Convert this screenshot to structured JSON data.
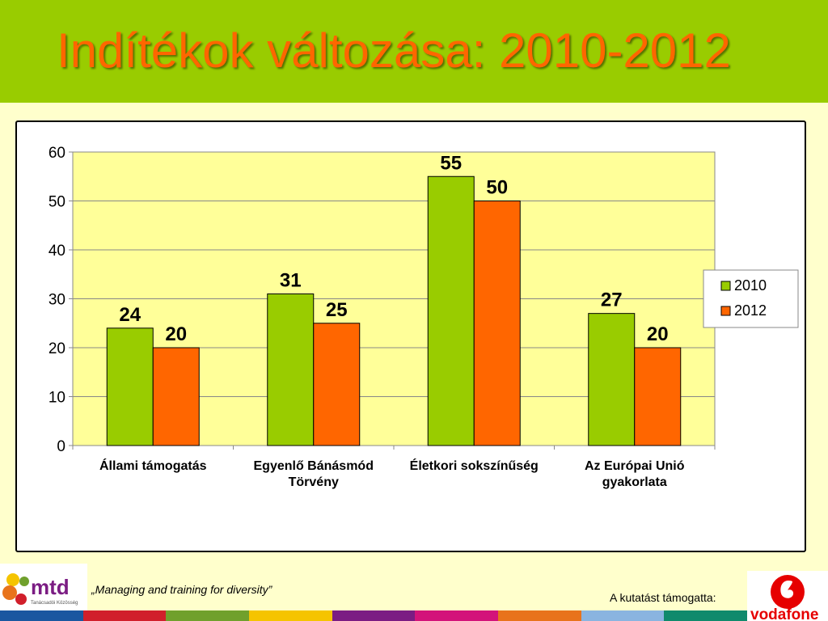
{
  "slide": {
    "title": "Indítékok változása: 2010-2012",
    "slogan": "„Managing and training for diversity”",
    "support_label": "A kutatást támogatta:",
    "brand_left": "mtd",
    "brand_left_sub": "Tanácsadói Közösség",
    "brand_right": "vodafone",
    "strip_colors": [
      "#1a57a0",
      "#d11f2b",
      "#70a02c",
      "#f5c400",
      "#7b1c83",
      "#d3137a",
      "#e8731c",
      "#8ab4e0",
      "#0f8a6c"
    ]
  },
  "colors": {
    "header": "#99cc00",
    "plot_bg": "#ffff99",
    "series_2010": "#99cc00",
    "series_2012": "#ff6600",
    "title": "#ff6600"
  },
  "chart_data": {
    "type": "bar",
    "categories": [
      [
        "Állami támogatás"
      ],
      [
        "Egyenlő Bánásmód",
        "Törvény"
      ],
      [
        "Életkori sokszínűség"
      ],
      [
        "Az Európai Unió",
        "gyakorlata"
      ]
    ],
    "series": [
      {
        "name": "2010",
        "values": [
          24,
          31,
          55,
          27
        ],
        "labels": [
          "24",
          "31",
          "55",
          "27"
        ]
      },
      {
        "name": "2012",
        "values": [
          20,
          25,
          50,
          20
        ],
        "labels": [
          "20",
          "25",
          "50",
          "20"
        ]
      }
    ],
    "ylim": [
      0,
      60
    ],
    "yticks": [
      0,
      10,
      20,
      30,
      40,
      50,
      60
    ],
    "ytick_labels": [
      "0",
      "10",
      "20",
      "30",
      "40",
      "50",
      "60"
    ],
    "grid": true,
    "legend": "right",
    "title": "",
    "xlabel": "",
    "ylabel": ""
  }
}
